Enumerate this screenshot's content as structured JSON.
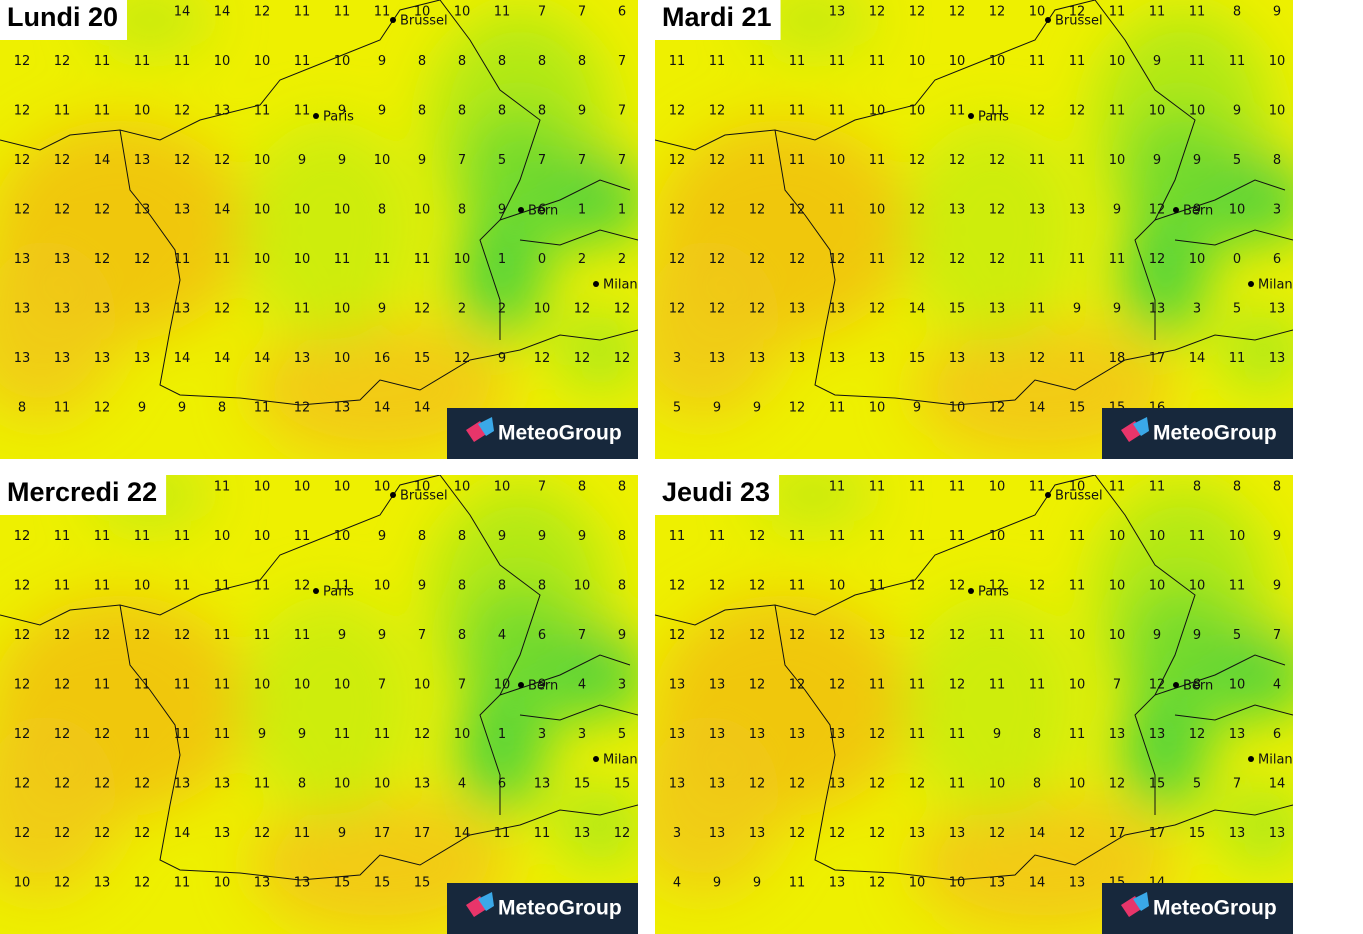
{
  "cities": [
    "Brussel",
    "Paris",
    "Bern",
    "Milan"
  ],
  "brand": "MeteoGroup",
  "panels": [
    {
      "title": "Lundi 20",
      "grid": [
        [
          null,
          null,
          null,
          null,
          14,
          14,
          12,
          11,
          11,
          11,
          10,
          10,
          11,
          7,
          7,
          6
        ],
        [
          12,
          12,
          11,
          11,
          11,
          10,
          10,
          11,
          10,
          9,
          8,
          8,
          8,
          8,
          8,
          7
        ],
        [
          12,
          11,
          11,
          10,
          12,
          13,
          11,
          11,
          9,
          9,
          8,
          8,
          8,
          8,
          9,
          7
        ],
        [
          12,
          12,
          14,
          13,
          12,
          12,
          10,
          9,
          9,
          10,
          9,
          7,
          5,
          7,
          7,
          7
        ],
        [
          12,
          12,
          12,
          13,
          13,
          14,
          10,
          10,
          10,
          8,
          10,
          8,
          9,
          6,
          1,
          1
        ],
        [
          13,
          13,
          12,
          12,
          11,
          11,
          10,
          10,
          11,
          11,
          11,
          10,
          1,
          0,
          2,
          2
        ],
        [
          13,
          13,
          13,
          13,
          13,
          12,
          12,
          11,
          10,
          9,
          12,
          2,
          2,
          10,
          12,
          12
        ],
        [
          13,
          13,
          13,
          13,
          14,
          14,
          14,
          13,
          10,
          16,
          15,
          12,
          9,
          12,
          12,
          12
        ],
        [
          8,
          11,
          12,
          9,
          9,
          8,
          11,
          12,
          13,
          14,
          14,
          null,
          null,
          null,
          null,
          null
        ]
      ]
    },
    {
      "title": "Mardi 21",
      "grid": [
        [
          null,
          null,
          null,
          null,
          13,
          12,
          12,
          12,
          12,
          10,
          12,
          11,
          11,
          11,
          8,
          9
        ],
        [
          11,
          11,
          11,
          11,
          11,
          11,
          10,
          10,
          10,
          11,
          11,
          10,
          9,
          11,
          11,
          10
        ],
        [
          12,
          12,
          11,
          11,
          11,
          10,
          10,
          11,
          11,
          12,
          12,
          11,
          10,
          10,
          9,
          10
        ],
        [
          12,
          12,
          11,
          11,
          10,
          11,
          12,
          12,
          12,
          11,
          11,
          10,
          9,
          9,
          5,
          8
        ],
        [
          12,
          12,
          12,
          12,
          11,
          10,
          12,
          13,
          12,
          13,
          13,
          9,
          12,
          9,
          10,
          3
        ],
        [
          12,
          12,
          12,
          12,
          12,
          11,
          12,
          12,
          12,
          11,
          11,
          11,
          12,
          10,
          0,
          6
        ],
        [
          12,
          12,
          12,
          13,
          13,
          12,
          14,
          15,
          13,
          11,
          9,
          9,
          13,
          3,
          5,
          13
        ],
        [
          3,
          13,
          13,
          13,
          13,
          13,
          15,
          13,
          13,
          12,
          11,
          18,
          17,
          14,
          11,
          13
        ],
        [
          5,
          9,
          9,
          12,
          11,
          10,
          9,
          10,
          12,
          14,
          15,
          15,
          16,
          null,
          null,
          null
        ]
      ]
    },
    {
      "title": "Mercredi 22",
      "grid": [
        [
          null,
          null,
          null,
          null,
          null,
          11,
          10,
          10,
          10,
          10,
          10,
          10,
          10,
          7,
          8,
          8
        ],
        [
          12,
          11,
          11,
          11,
          11,
          10,
          10,
          11,
          10,
          9,
          8,
          8,
          9,
          9,
          9,
          8
        ],
        [
          12,
          11,
          11,
          10,
          11,
          11,
          11,
          12,
          11,
          10,
          9,
          8,
          8,
          8,
          10,
          8
        ],
        [
          12,
          12,
          12,
          12,
          12,
          11,
          11,
          11,
          9,
          9,
          7,
          8,
          4,
          6,
          7,
          9
        ],
        [
          12,
          12,
          11,
          11,
          11,
          11,
          10,
          10,
          10,
          7,
          10,
          7,
          10,
          9,
          4,
          3
        ],
        [
          12,
          12,
          12,
          11,
          11,
          11,
          9,
          9,
          11,
          11,
          12,
          10,
          1,
          3,
          3,
          5
        ],
        [
          12,
          12,
          12,
          12,
          13,
          13,
          11,
          8,
          10,
          10,
          13,
          4,
          6,
          13,
          15,
          15
        ],
        [
          12,
          12,
          12,
          12,
          14,
          13,
          12,
          11,
          9,
          17,
          17,
          14,
          11,
          11,
          13,
          12
        ],
        [
          10,
          12,
          13,
          12,
          11,
          10,
          13,
          13,
          15,
          15,
          15,
          null,
          null,
          null,
          null,
          null
        ]
      ]
    },
    {
      "title": "Jeudi 23",
      "grid": [
        [
          null,
          null,
          null,
          null,
          11,
          11,
          11,
          11,
          10,
          11,
          10,
          11,
          11,
          8,
          8,
          8
        ],
        [
          11,
          11,
          12,
          11,
          11,
          11,
          11,
          11,
          10,
          11,
          11,
          10,
          10,
          11,
          10,
          9
        ],
        [
          12,
          12,
          12,
          11,
          10,
          11,
          12,
          12,
          12,
          12,
          11,
          10,
          10,
          10,
          11,
          9
        ],
        [
          12,
          12,
          12,
          12,
          12,
          13,
          12,
          12,
          11,
          11,
          10,
          10,
          9,
          9,
          5,
          7
        ],
        [
          13,
          13,
          12,
          12,
          12,
          11,
          11,
          12,
          11,
          11,
          10,
          7,
          12,
          8,
          10,
          4
        ],
        [
          13,
          13,
          13,
          13,
          13,
          12,
          11,
          11,
          9,
          8,
          11,
          13,
          13,
          12,
          13,
          6
        ],
        [
          13,
          13,
          12,
          12,
          13,
          12,
          12,
          11,
          10,
          8,
          10,
          12,
          15,
          5,
          7,
          14
        ],
        [
          3,
          13,
          13,
          12,
          12,
          12,
          13,
          13,
          12,
          14,
          12,
          17,
          17,
          15,
          13,
          13
        ],
        [
          4,
          9,
          9,
          11,
          13,
          12,
          10,
          10,
          13,
          14,
          13,
          15,
          14,
          null,
          null,
          null
        ]
      ]
    }
  ]
}
